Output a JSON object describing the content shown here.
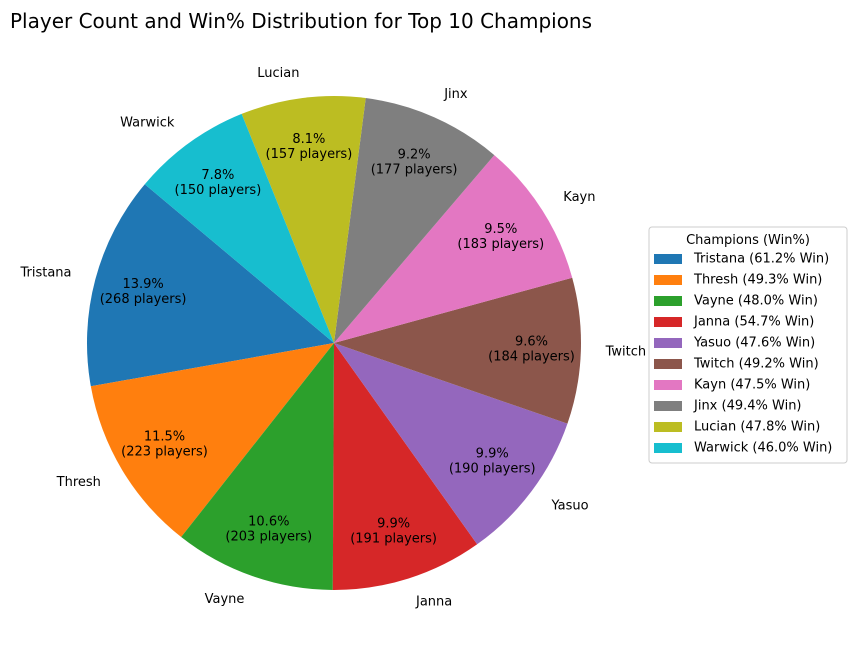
{
  "chart_data": {
    "type": "pie",
    "title": "Player Count and Win% Distribution for Top 10 Champions",
    "legend_title": "Champions (Win%)",
    "legend_position": "right",
    "slices": [
      {
        "label": "Tristana",
        "players": 268,
        "percent": 13.9,
        "win": 61.2,
        "color": "#1f77b4",
        "pct_text": "13.9%",
        "count_text": "(268 players)",
        "legend": "Tristana (61.2% Win)"
      },
      {
        "label": "Thresh",
        "players": 223,
        "percent": 11.5,
        "win": 49.3,
        "color": "#ff7f0e",
        "pct_text": "11.5%",
        "count_text": "(223 players)",
        "legend": "Thresh (49.3% Win)"
      },
      {
        "label": "Vayne",
        "players": 203,
        "percent": 10.6,
        "win": 48.0,
        "color": "#2ca02c",
        "pct_text": "10.6%",
        "count_text": "(203 players)",
        "legend": "Vayne (48.0% Win)"
      },
      {
        "label": "Janna",
        "players": 191,
        "percent": 9.9,
        "win": 54.7,
        "color": "#d62728",
        "pct_text": "9.9%",
        "count_text": "(191 players)",
        "legend": "Janna (54.7% Win)"
      },
      {
        "label": "Yasuo",
        "players": 190,
        "percent": 9.9,
        "win": 47.6,
        "color": "#9467bd",
        "pct_text": "9.9%",
        "count_text": "(190 players)",
        "legend": "Yasuo (47.6% Win)"
      },
      {
        "label": "Twitch",
        "players": 184,
        "percent": 9.6,
        "win": 49.2,
        "color": "#8c564b",
        "pct_text": "9.6%",
        "count_text": "(184 players)",
        "legend": "Twitch (49.2% Win)"
      },
      {
        "label": "Kayn",
        "players": 183,
        "percent": 9.5,
        "win": 47.5,
        "color": "#e377c2",
        "pct_text": "9.5%",
        "count_text": "(183 players)",
        "legend": "Kayn (47.5% Win)"
      },
      {
        "label": "Jinx",
        "players": 177,
        "percent": 9.2,
        "win": 49.4,
        "color": "#7f7f7f",
        "pct_text": "9.2%",
        "count_text": "(177 players)",
        "legend": "Jinx (49.4% Win)"
      },
      {
        "label": "Lucian",
        "players": 157,
        "percent": 8.1,
        "win": 47.8,
        "color": "#bcbd22",
        "pct_text": "8.1%",
        "count_text": "(157 players)",
        "legend": "Lucian (47.8% Win)"
      },
      {
        "label": "Warwick",
        "players": 150,
        "percent": 7.8,
        "win": 46.0,
        "color": "#17becf",
        "pct_text": "7.8%",
        "count_text": "(150 players)",
        "legend": "Warwick (46.0% Win)"
      }
    ]
  }
}
